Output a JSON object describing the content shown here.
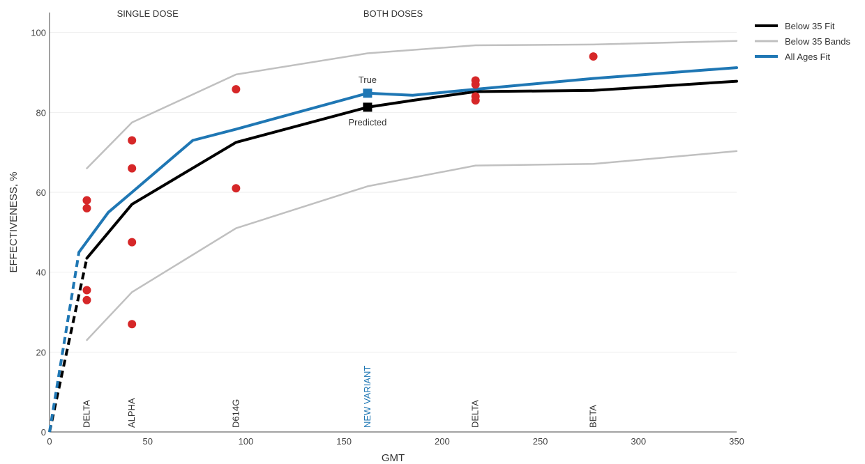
{
  "chart_data": {
    "type": "line",
    "title": "",
    "xlabel": "GMT",
    "ylabel": "EFFECTIVENESS, %",
    "xlim": [
      0,
      350
    ],
    "ylim": [
      0,
      105
    ],
    "x_ticks": [
      0,
      50,
      100,
      150,
      200,
      250,
      300,
      350
    ],
    "y_ticks": [
      0,
      20,
      40,
      60,
      80,
      100
    ],
    "grid": true,
    "legend_position": "top-right",
    "colors": {
      "below35_fit": "#000000",
      "below35_bands": "#c0c0c0",
      "all_ages_fit": "#1f77b4",
      "points": "#d62728",
      "new_variant_label": "#1f77b4"
    },
    "series": [
      {
        "name": "Below 35 Fit",
        "style": "solid",
        "x": [
          19,
          42,
          95,
          162,
          185,
          217,
          277,
          350
        ],
        "y": [
          43.5,
          57,
          72.5,
          81.3,
          83,
          85.2,
          85.5,
          87.8
        ]
      },
      {
        "name": "Below 35 Bands",
        "style": "solid",
        "x": [
          19,
          42,
          95,
          162,
          217,
          277,
          350
        ],
        "y": [
          66,
          77.5,
          89.5,
          94.8,
          96.8,
          97,
          97.9
        ]
      },
      {
        "name": "Below 35 Bands",
        "style": "solid",
        "x": [
          19,
          42,
          95,
          162,
          217,
          277,
          350
        ],
        "y": [
          23,
          35,
          51,
          61.5,
          66.7,
          67.1,
          70.3
        ]
      },
      {
        "name": "All Ages Fit",
        "style": "solid",
        "x": [
          15,
          30,
          42,
          73,
          95,
          162,
          185,
          217,
          277,
          350
        ],
        "y": [
          45,
          55,
          60,
          73,
          75.8,
          84.8,
          84.3,
          85.8,
          88.5,
          91.2
        ]
      }
    ],
    "dashed_lines": [
      {
        "series": "Below 35 Fit",
        "x": [
          0,
          19
        ],
        "y": [
          0,
          43.5
        ]
      },
      {
        "series": "All Ages Fit",
        "x": [
          0,
          15
        ],
        "y": [
          0,
          45
        ]
      }
    ],
    "points": [
      {
        "x": 19,
        "y": 58
      },
      {
        "x": 19,
        "y": 56
      },
      {
        "x": 19,
        "y": 35.5
      },
      {
        "x": 19,
        "y": 33
      },
      {
        "x": 42,
        "y": 73
      },
      {
        "x": 42,
        "y": 66
      },
      {
        "x": 42,
        "y": 47.5
      },
      {
        "x": 42,
        "y": 27
      },
      {
        "x": 95,
        "y": 85.8
      },
      {
        "x": 95,
        "y": 61
      },
      {
        "x": 217,
        "y": 88
      },
      {
        "x": 217,
        "y": 87
      },
      {
        "x": 217,
        "y": 84
      },
      {
        "x": 217,
        "y": 83
      },
      {
        "x": 277,
        "y": 94
      }
    ],
    "markers": [
      {
        "label": "True",
        "x": 162,
        "y": 84.8,
        "color": "#1f77b4"
      },
      {
        "label": "Predicted",
        "x": 162,
        "y": 81.3,
        "color": "#000000"
      }
    ],
    "section_labels": [
      {
        "text": "SINGLE DOSE",
        "x": 50
      },
      {
        "text": "BOTH DOSES",
        "x": 175
      }
    ],
    "variant_labels": [
      {
        "text": "DELTA",
        "x": 19,
        "color": "#333333"
      },
      {
        "text": "ALPHA",
        "x": 42,
        "color": "#333333"
      },
      {
        "text": "D614G",
        "x": 95,
        "color": "#333333"
      },
      {
        "text": "NEW VARIANT",
        "x": 162,
        "color": "#1f77b4"
      },
      {
        "text": "DELTA",
        "x": 217,
        "color": "#333333"
      },
      {
        "text": "BETA",
        "x": 277,
        "color": "#333333"
      }
    ]
  }
}
